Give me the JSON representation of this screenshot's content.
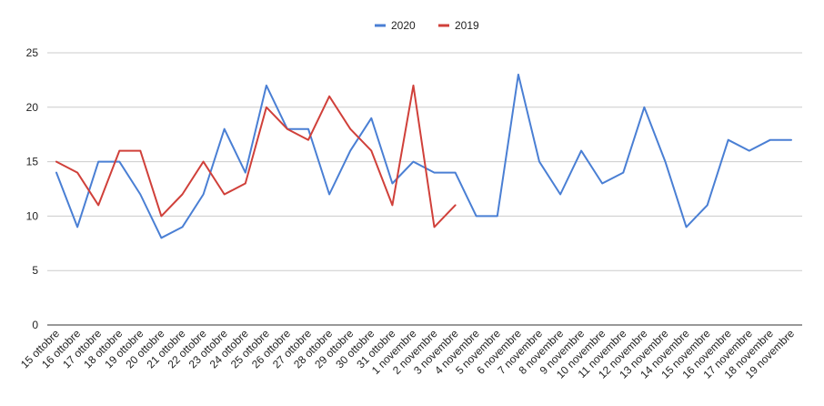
{
  "chart_data": {
    "type": "line",
    "title": "",
    "xlabel": "",
    "ylabel": "",
    "ylim": [
      0,
      25
    ],
    "yticks": [
      0,
      5,
      10,
      15,
      20,
      25
    ],
    "grid": true,
    "legend_position": "top-center",
    "categories": [
      "15 ottobre",
      "16 ottobre",
      "17 ottobre",
      "18 ottobre",
      "19 ottobre",
      "20 ottobre",
      "21 ottobre",
      "22 ottobre",
      "23 ottobre",
      "24 ottobre",
      "25 ottobre",
      "26 ottobre",
      "27 ottobre",
      "28 ottobre",
      "29 ottobre",
      "30 ottobre",
      "31 ottobre",
      "1 novembre",
      "2 novembre",
      "3 novembre",
      "4 novembre",
      "5 novembre",
      "6 novembre",
      "7 novembre",
      "8 novembre",
      "9 novembre",
      "10 novembre",
      "11 novembre",
      "12 novembre",
      "13 novembre",
      "14 novembre",
      "15 novembre",
      "16 novembre",
      "17 novembre",
      "18 novembre",
      "19 novembre"
    ],
    "series": [
      {
        "name": "2020",
        "color": "#4a7fd4",
        "values": [
          14,
          9,
          15,
          15,
          12,
          8,
          9,
          12,
          18,
          14,
          22,
          18,
          18,
          12,
          16,
          19,
          13,
          15,
          14,
          14,
          10,
          10,
          23,
          15,
          12,
          16,
          13,
          14,
          20,
          15,
          9,
          11,
          17,
          16,
          17,
          17
        ]
      },
      {
        "name": "2019",
        "color": "#d0403a",
        "values": [
          15,
          14,
          11,
          16,
          16,
          10,
          12,
          15,
          12,
          13,
          20,
          18,
          17,
          21,
          18,
          16,
          11,
          22,
          9,
          11,
          null,
          null,
          null,
          null,
          null,
          null,
          null,
          null,
          null,
          null,
          null,
          null,
          null,
          null,
          null,
          null
        ]
      }
    ]
  }
}
